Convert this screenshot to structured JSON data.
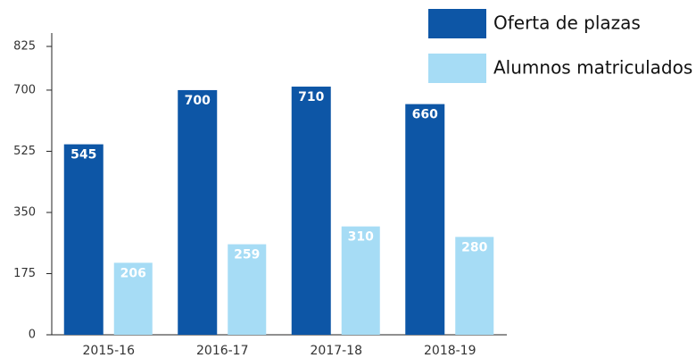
{
  "chart_data": {
    "type": "bar",
    "categories": [
      "2015-16",
      "2016-17",
      "2017-18",
      "2018-19"
    ],
    "series": [
      {
        "name": "Oferta de plazas",
        "color": "#0d56a6",
        "values": [
          545,
          700,
          710,
          660
        ]
      },
      {
        "name": "Alumnos matriculados",
        "color": "#a6dcf5",
        "values": [
          206,
          259,
          310,
          280
        ]
      }
    ],
    "ylim": [
      0,
      825
    ],
    "yticks": [
      0,
      175,
      350,
      525,
      700,
      825
    ],
    "legend": "top-right"
  }
}
